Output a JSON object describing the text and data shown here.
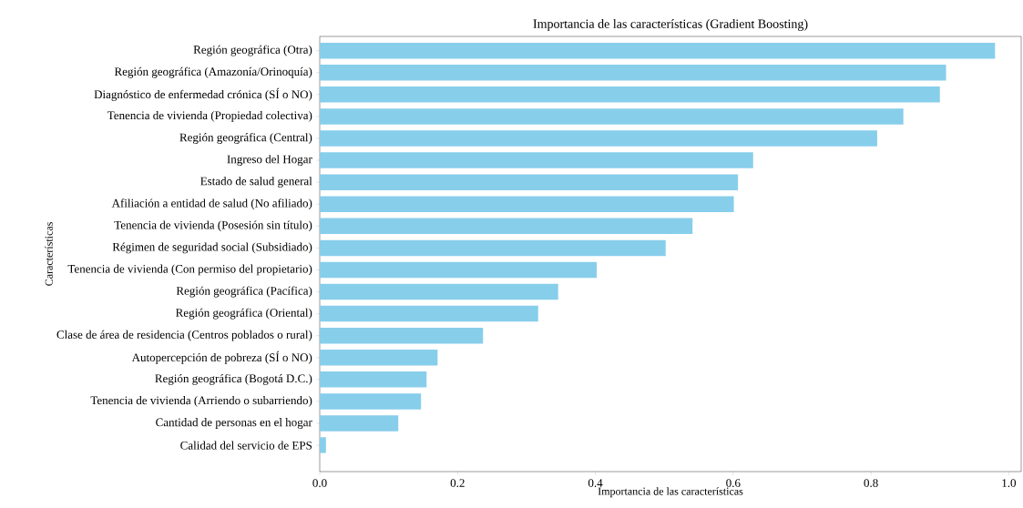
{
  "chart_data": {
    "type": "bar",
    "orientation": "horizontal",
    "title": "Importancia de las características (Gradient Boosting)",
    "xlabel": "Importancia de las características",
    "ylabel": "Características",
    "categories": [
      "Región geográfica (Otra)",
      "Región geográfica (Amazonía/Orinoquía)",
      "Diagnóstico de enfermedad crónica (SÍ o NO)",
      "Tenencia de vivienda (Propiedad colectiva)",
      "Región geográfica (Central)",
      "Ingreso del Hogar",
      "Estado de salud general",
      "Afiliación a entidad de salud (No afiliado)",
      "Tenencia de vivienda (Posesión sin título)",
      "Régimen de seguridad social (Subsidiado)",
      "Tenencia de vivienda (Con permiso del propietario)",
      "Región geográfica (Pacífica)",
      "Región geográfica (Oriental)",
      "Clase de área de residencia (Centros poblados o rural)",
      "Autopercepción de pobreza (SÍ o NO)",
      "Región geográfica (Bogotá D.C.)",
      "Tenencia de vivienda (Arriendo o subarriendo)",
      "Cantidad de personas en el hogar",
      "Calidad del servicio de EPS"
    ],
    "values": [
      0.98,
      0.909,
      0.9,
      0.847,
      0.809,
      0.629,
      0.607,
      0.601,
      0.541,
      0.502,
      0.402,
      0.346,
      0.317,
      0.237,
      0.171,
      0.155,
      0.147,
      0.114,
      0.009
    ],
    "color": "#87ceeb",
    "xlim": [
      0,
      1.018
    ],
    "xticks": [
      {
        "value": 0,
        "label": "0.0"
      },
      0.2,
      0.4,
      0.6,
      0.8,
      {
        "value": 1,
        "label": "1.0"
      }
    ],
    "grid": false
  }
}
